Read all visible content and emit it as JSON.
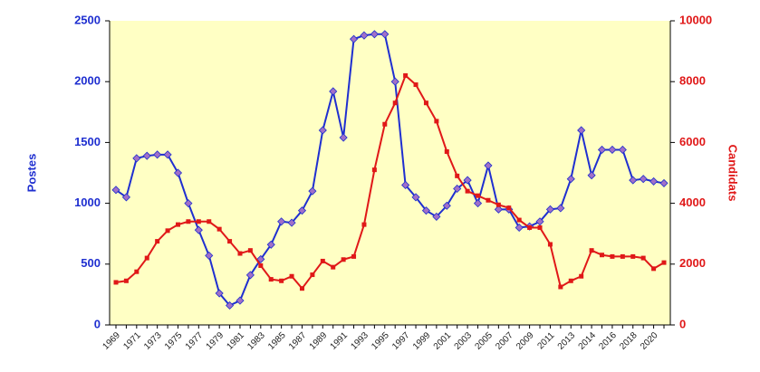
{
  "chart_data": {
    "type": "line",
    "categories": [
      "1969",
      null,
      "1971",
      null,
      "1973",
      null,
      "1975",
      null,
      "1977",
      null,
      "1979",
      null,
      "1981",
      null,
      "1983",
      null,
      "1985",
      null,
      "1987",
      null,
      "1989",
      null,
      "1991",
      null,
      "1993",
      null,
      "1995",
      null,
      "1997",
      null,
      "1999",
      null,
      "2001",
      null,
      "2003",
      null,
      "2005",
      null,
      "2007",
      null,
      "2009",
      null,
      "2011",
      null,
      "2013",
      null,
      "2014",
      null,
      "2016",
      null,
      "2018",
      null,
      "2020",
      null
    ],
    "ylabel": "Postes",
    "y2label": "Candidats",
    "ylim": [
      0,
      2500
    ],
    "yticks": [
      0,
      500,
      1000,
      1500,
      2000,
      2500
    ],
    "y2lim": [
      0,
      10000
    ],
    "y2ticks": [
      0,
      2000,
      4000,
      6000,
      8000,
      10000
    ],
    "background": "#ffffc4",
    "series": [
      {
        "name": "Postes",
        "color": "#1f2fd0",
        "marker_color": "#a070c8",
        "values": [
          1110,
          1050,
          1370,
          1390,
          1400,
          1400,
          1250,
          1000,
          780,
          570,
          260,
          160,
          200,
          410,
          540,
          660,
          850,
          840,
          940,
          1100,
          1600,
          1920,
          1540,
          2350,
          2380,
          2390,
          2390,
          2000,
          1150,
          1050,
          940,
          890,
          980,
          1120,
          1190,
          1000,
          1310,
          950,
          950,
          800,
          810,
          850,
          950,
          960,
          1200,
          1600,
          1230,
          1440,
          1440,
          1440,
          1190,
          1200,
          1180,
          1165
        ]
      },
      {
        "name": "Candidats",
        "color": "#e01818",
        "axis": "y2",
        "values": [
          1400,
          1450,
          1750,
          2200,
          2750,
          3100,
          3300,
          3400,
          3400,
          3400,
          3150,
          2750,
          2350,
          2450,
          1950,
          1500,
          1450,
          1600,
          1200,
          1650,
          2100,
          1900,
          2150,
          2250,
          3300,
          5100,
          6600,
          7300,
          8200,
          7900,
          7300,
          6700,
          5700,
          4900,
          4400,
          4250,
          4100,
          3950,
          3850,
          3450,
          3200,
          3200,
          2650,
          1250,
          1450,
          1600,
          2450,
          2300,
          2250,
          2250,
          2250,
          2200,
          1850,
          2050
        ]
      }
    ]
  }
}
